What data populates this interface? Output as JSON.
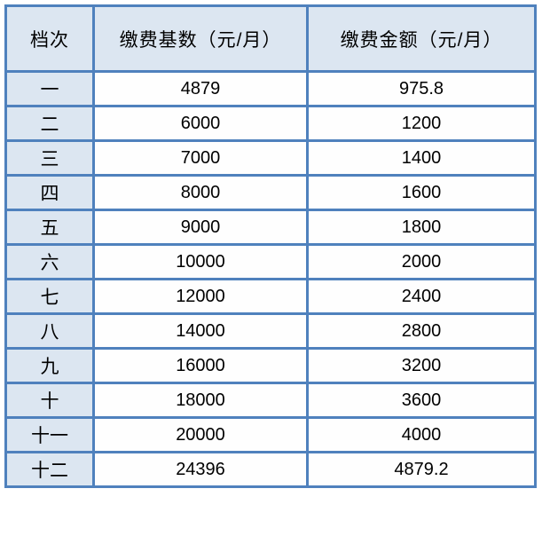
{
  "table": {
    "headers": [
      "档次",
      "缴费基数（元/月）",
      "缴费金额（元/月）"
    ],
    "rows": [
      {
        "tier": "一",
        "base": "4879",
        "amount": "975.8"
      },
      {
        "tier": "二",
        "base": "6000",
        "amount": "1200"
      },
      {
        "tier": "三",
        "base": "7000",
        "amount": "1400"
      },
      {
        "tier": "四",
        "base": "8000",
        "amount": "1600"
      },
      {
        "tier": "五",
        "base": "9000",
        "amount": "1800"
      },
      {
        "tier": "六",
        "base": "10000",
        "amount": "2000"
      },
      {
        "tier": "七",
        "base": "12000",
        "amount": "2400"
      },
      {
        "tier": "八",
        "base": "14000",
        "amount": "2800"
      },
      {
        "tier": "九",
        "base": "16000",
        "amount": "3200"
      },
      {
        "tier": "十",
        "base": "18000",
        "amount": "3600"
      },
      {
        "tier": "十一",
        "base": "20000",
        "amount": "4000"
      },
      {
        "tier": "十二",
        "base": "24396",
        "amount": "4879.2"
      }
    ]
  },
  "colors": {
    "border_blue": "#4f81bd",
    "shaded_cell_bg": "#dce6f1",
    "data_cell_bg": "#fefefe",
    "text": "#000000",
    "page_bg": "#ffffff"
  },
  "chart_data": {
    "type": "table",
    "columns": [
      "档次",
      "缴费基数（元/月）",
      "缴费金额（元/月）"
    ],
    "rows": [
      [
        "一",
        4879,
        975.8
      ],
      [
        "二",
        6000,
        1200
      ],
      [
        "三",
        7000,
        1400
      ],
      [
        "四",
        8000,
        1600
      ],
      [
        "五",
        9000,
        1800
      ],
      [
        "六",
        10000,
        2000
      ],
      [
        "七",
        12000,
        2400
      ],
      [
        "八",
        14000,
        2800
      ],
      [
        "九",
        16000,
        3200
      ],
      [
        "十",
        18000,
        3600
      ],
      [
        "十一",
        20000,
        4000
      ],
      [
        "十二",
        24396,
        4879.2
      ]
    ]
  }
}
